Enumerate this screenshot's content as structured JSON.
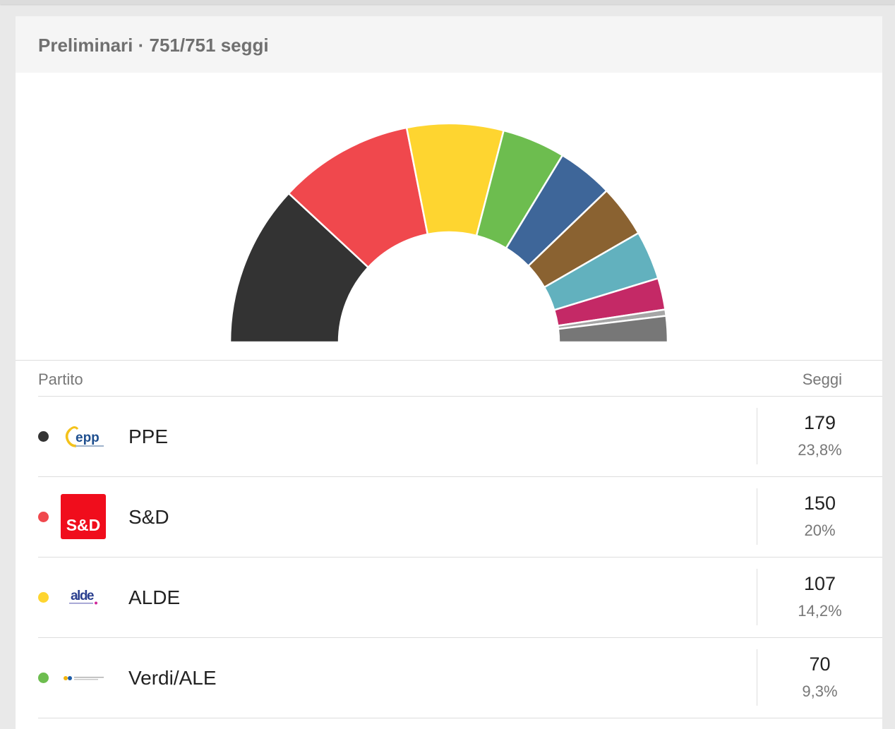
{
  "header": {
    "title": "Preliminari · 751/751 seggi"
  },
  "table": {
    "col_party": "Partito",
    "col_seats": "Seggi"
  },
  "chart_data": {
    "type": "pie",
    "shape": "half-donut",
    "total": 751,
    "segments": [
      {
        "party": "PPE",
        "value": 179,
        "color": "#333333"
      },
      {
        "party": "S&D",
        "value": 150,
        "color": "#f0484d"
      },
      {
        "party": "ALDE",
        "value": 107,
        "color": "#fed530"
      },
      {
        "party": "Verdi/ALE",
        "value": 70,
        "color": "#6dbd4f"
      },
      {
        "party": "",
        "value": 62,
        "color": "#3e6699"
      },
      {
        "party": "",
        "value": 58,
        "color": "#8a6231"
      },
      {
        "party": "",
        "value": 54,
        "color": "#62b1be"
      },
      {
        "party": "",
        "value": 35,
        "color": "#c42966"
      },
      {
        "party": "",
        "value": 7,
        "color": "#a6a6a6"
      },
      {
        "party": "",
        "value": 29,
        "color": "#777777"
      }
    ]
  },
  "rows": [
    {
      "name": "PPE",
      "seats": "179",
      "percent": "23,8%",
      "color": "#333333",
      "logo": "epp-logo",
      "logo_text": "epp"
    },
    {
      "name": "S&D",
      "seats": "150",
      "percent": "20%",
      "color": "#f0484d",
      "logo": "sd-logo",
      "logo_text": "S&D"
    },
    {
      "name": "ALDE",
      "seats": "107",
      "percent": "14,2%",
      "color": "#fed530",
      "logo": "alde-logo",
      "logo_text": "alde"
    },
    {
      "name": "Verdi/ALE",
      "seats": "70",
      "percent": "9,3%",
      "color": "#6dbd4f",
      "logo": "greens-efa-logo",
      "logo_text": ""
    }
  ]
}
